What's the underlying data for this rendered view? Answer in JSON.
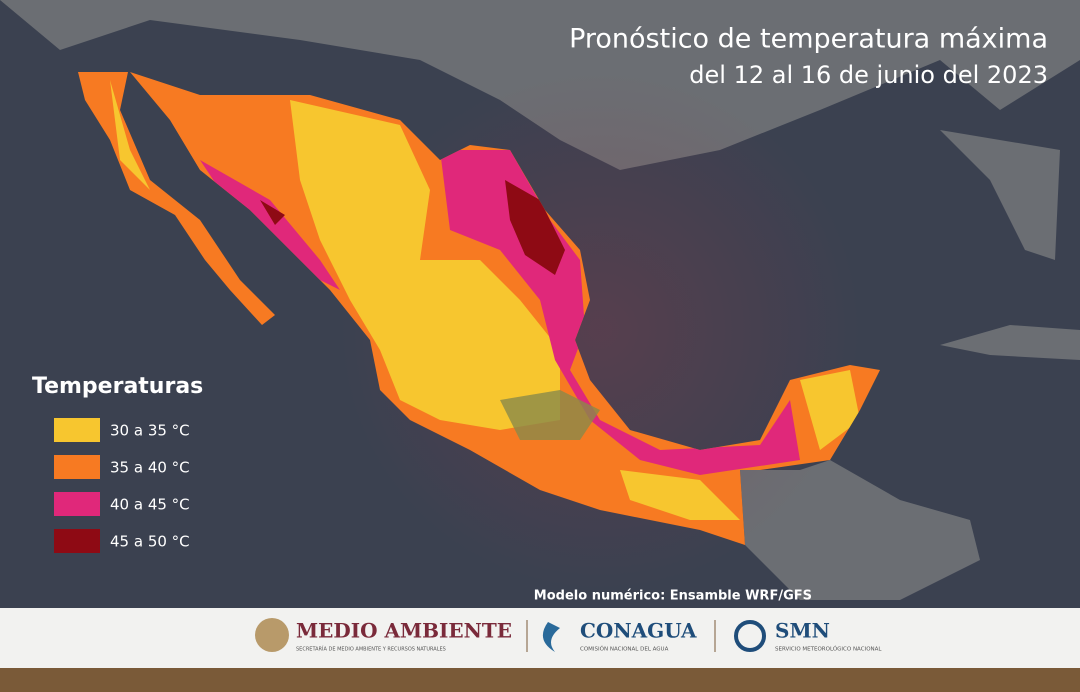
{
  "header": {
    "title": "Pronóstico de temperatura máxima",
    "subtitle": "del 12 al 16 de junio del 2023"
  },
  "legend": {
    "title": "Temperaturas",
    "items": [
      {
        "label": "30 a 35 °C",
        "color": "#f7c62f"
      },
      {
        "label": "35 a 40 °C",
        "color": "#f77a22"
      },
      {
        "label": "40 a 45 °C",
        "color": "#e0287a"
      },
      {
        "label": "45 a 50 °C",
        "color": "#8e0a14"
      }
    ]
  },
  "note": "Modelo numérico: Ensamble WRF/GFS",
  "footer": {
    "logos": [
      {
        "name": "MEDIO AMBIENTE",
        "caption": "SECRETARÍA DE MEDIO AMBIENTE Y RECURSOS NATURALES"
      },
      {
        "name": "CONAGUA",
        "caption": "COMISIÓN NACIONAL DEL AGUA"
      },
      {
        "name": "SMN",
        "caption": "SERVICIO METEOROLÓGICO NACIONAL"
      }
    ]
  }
}
